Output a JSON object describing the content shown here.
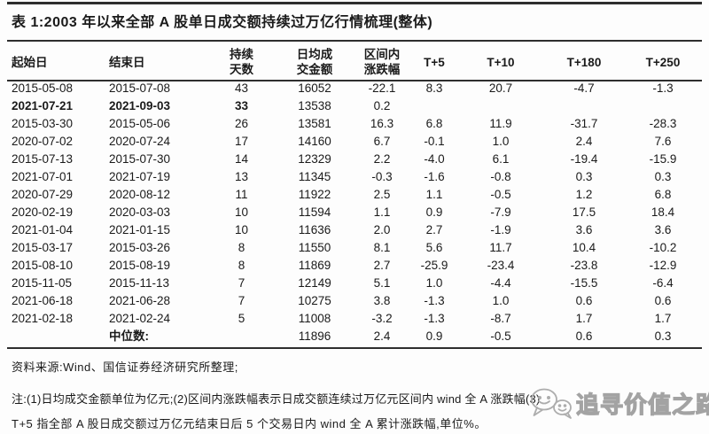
{
  "title": "表 1:2003 年以来全部 A 股单日成交额持续过万亿行情梳理(整体)",
  "table": {
    "columns": [
      [
        "起始日"
      ],
      [
        "结束日"
      ],
      [
        "持续",
        "天数"
      ],
      [
        "日均成",
        "交金额"
      ],
      [
        "区间内",
        "涨跌幅"
      ],
      [
        "T+5"
      ],
      [
        "T+10"
      ],
      [
        "T+180"
      ],
      [
        "T+250"
      ]
    ],
    "rows": [
      {
        "start": "2015-05-08",
        "end": "2015-07-08",
        "days": "43",
        "avg": "16052",
        "range": "-22.1",
        "t5": "8.3",
        "t10": "20.7",
        "t180": "-4.7",
        "t250": "-1.3",
        "bold": false,
        "is_median": false
      },
      {
        "start": "2021-07-21",
        "end": "2021-09-03",
        "days": "33",
        "avg": "13538",
        "range": "0.2",
        "t5": "",
        "t10": "",
        "t180": "",
        "t250": "",
        "bold": true,
        "is_median": false
      },
      {
        "start": "2015-03-30",
        "end": "2015-05-06",
        "days": "26",
        "avg": "13581",
        "range": "16.3",
        "t5": "6.8",
        "t10": "11.9",
        "t180": "-31.7",
        "t250": "-28.3",
        "bold": false,
        "is_median": false
      },
      {
        "start": "2020-07-02",
        "end": "2020-07-24",
        "days": "17",
        "avg": "14160",
        "range": "6.7",
        "t5": "-0.1",
        "t10": "1.0",
        "t180": "2.4",
        "t250": "7.6",
        "bold": false,
        "is_median": false
      },
      {
        "start": "2015-07-13",
        "end": "2015-07-30",
        "days": "14",
        "avg": "12329",
        "range": "2.2",
        "t5": "-4.0",
        "t10": "6.1",
        "t180": "-19.4",
        "t250": "-15.9",
        "bold": false,
        "is_median": false
      },
      {
        "start": "2021-07-01",
        "end": "2021-07-19",
        "days": "13",
        "avg": "11345",
        "range": "-0.3",
        "t5": "-1.6",
        "t10": "-0.8",
        "t180": "0.3",
        "t250": "0.3",
        "bold": false,
        "is_median": false
      },
      {
        "start": "2020-07-29",
        "end": "2020-08-12",
        "days": "11",
        "avg": "11922",
        "range": "2.5",
        "t5": "1.1",
        "t10": "-0.5",
        "t180": "1.2",
        "t250": "6.8",
        "bold": false,
        "is_median": false
      },
      {
        "start": "2020-02-19",
        "end": "2020-03-03",
        "days": "10",
        "avg": "11594",
        "range": "1.1",
        "t5": "0.9",
        "t10": "-7.9",
        "t180": "17.5",
        "t250": "18.4",
        "bold": false,
        "is_median": false
      },
      {
        "start": "2021-01-04",
        "end": "2021-01-15",
        "days": "10",
        "avg": "11636",
        "range": "2.0",
        "t5": "2.7",
        "t10": "-1.9",
        "t180": "3.6",
        "t250": "3.6",
        "bold": false,
        "is_median": false
      },
      {
        "start": "2015-03-17",
        "end": "2015-03-26",
        "days": "8",
        "avg": "11550",
        "range": "8.1",
        "t5": "5.6",
        "t10": "11.7",
        "t180": "10.4",
        "t250": "-10.2",
        "bold": false,
        "is_median": false
      },
      {
        "start": "2015-08-10",
        "end": "2015-08-19",
        "days": "8",
        "avg": "11869",
        "range": "2.7",
        "t5": "-25.9",
        "t10": "-23.4",
        "t180": "-23.8",
        "t250": "-12.9",
        "bold": false,
        "is_median": false
      },
      {
        "start": "2015-11-05",
        "end": "2015-11-13",
        "days": "7",
        "avg": "12149",
        "range": "5.1",
        "t5": "1.0",
        "t10": "-4.4",
        "t180": "-15.5",
        "t250": "-6.4",
        "bold": false,
        "is_median": false
      },
      {
        "start": "2021-06-18",
        "end": "2021-06-28",
        "days": "7",
        "avg": "10275",
        "range": "3.8",
        "t5": "-1.3",
        "t10": "1.0",
        "t180": "0.6",
        "t250": "0.6",
        "bold": false,
        "is_median": false
      },
      {
        "start": "2021-02-18",
        "end": "2021-02-24",
        "days": "5",
        "avg": "11008",
        "range": "-3.2",
        "t5": "-1.3",
        "t10": "-8.7",
        "t180": "1.7",
        "t250": "1.7",
        "bold": false,
        "is_median": false
      },
      {
        "start": "",
        "end": "中位数:",
        "days": "",
        "avg": "11896",
        "range": "2.4",
        "t5": "0.9",
        "t10": "-0.5",
        "t180": "0.6",
        "t250": "0.3",
        "bold": false,
        "is_median": true
      }
    ]
  },
  "footer": {
    "source": "资料来源:Wind、国信证券经济研究所整理;",
    "note_line1": "注:(1)日均成交金额单位为亿元;(2)区间内涨跌幅表示日成交额连续过万亿元区间内 wind 全 A 涨跌幅(3)",
    "note_line2": "T+5 指全部 A 股日成交额过万亿元结束日后 5 个交易日内 wind 全 A 累计涨跌幅,单位%。"
  },
  "watermark": {
    "text": "追寻价值之路",
    "icon": "wechat-chat-bubbles-icon"
  },
  "colors": {
    "text": "#1a1a1a",
    "rule": "#2e2e2e",
    "watermark": "#a3a3a3",
    "background": "#fdfdfd"
  }
}
